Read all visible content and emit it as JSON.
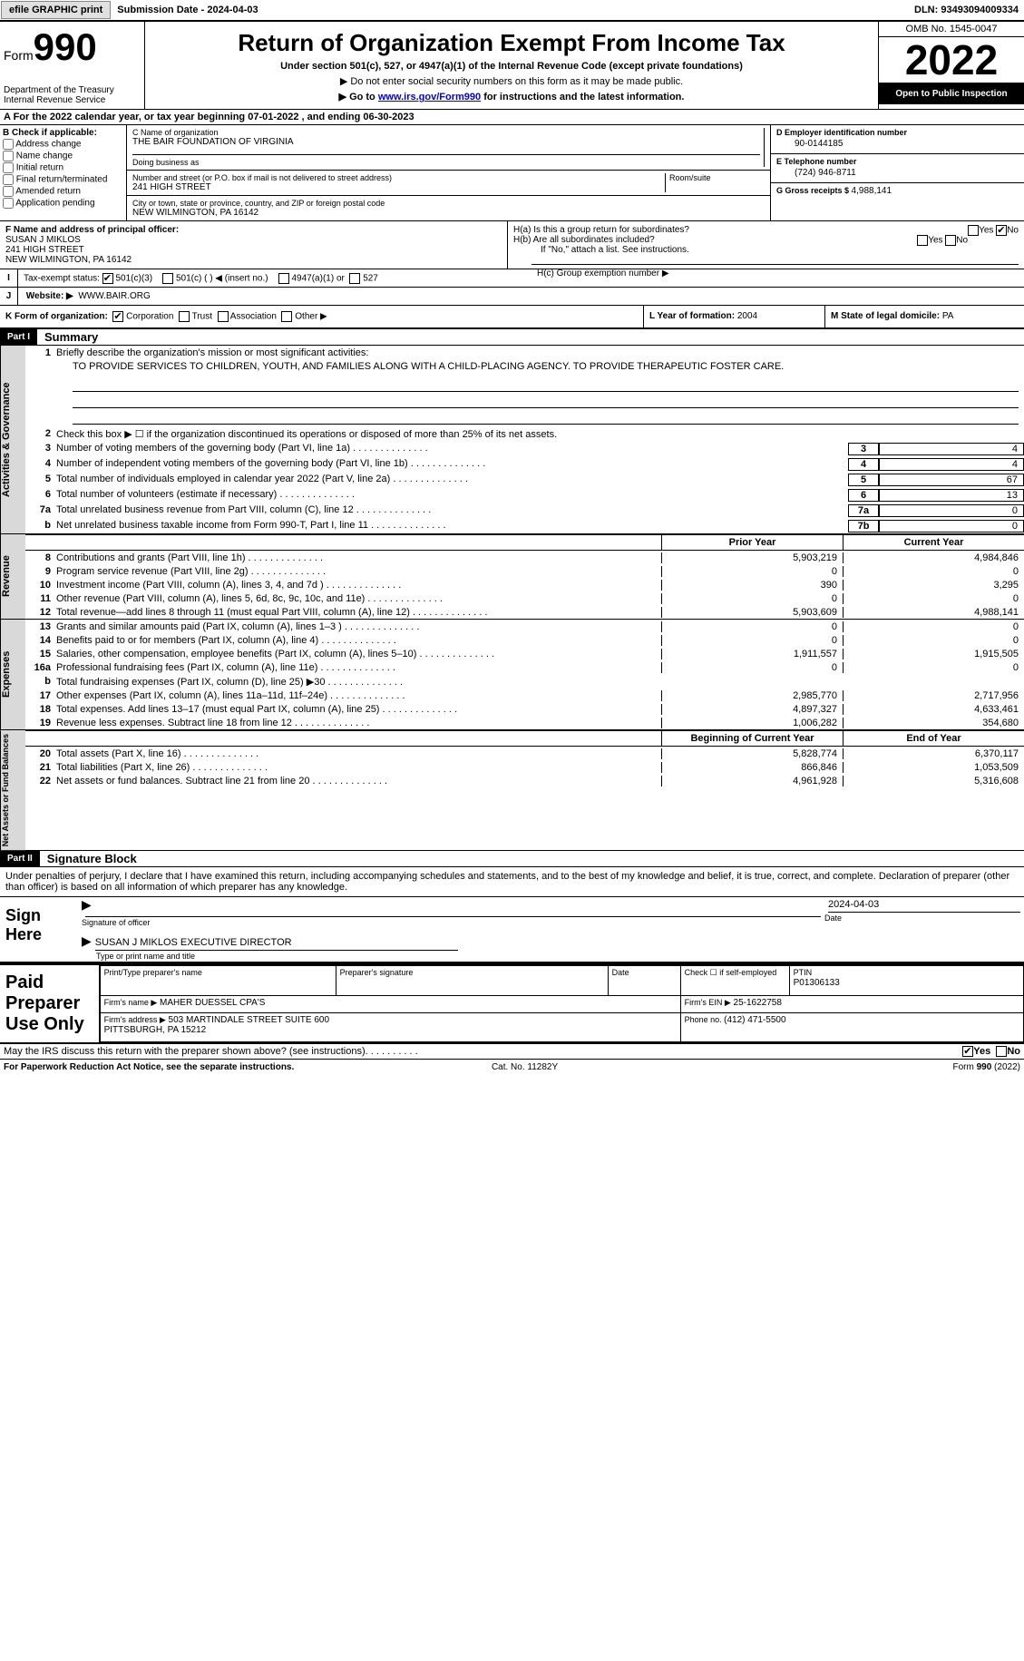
{
  "topbar": {
    "efile_btn": "efile GRAPHIC print",
    "sub_date_label": "Submission Date - ",
    "sub_date": "2024-04-03",
    "dln_label": "DLN: ",
    "dln": "93493094009334"
  },
  "hdr": {
    "form_label": "Form",
    "form_num": "990",
    "dept": "Department of the Treasury Internal Revenue Service",
    "title": "Return of Organization Exempt From Income Tax",
    "sub1": "Under section 501(c), 527, or 4947(a)(1) of the Internal Revenue Code (except private foundations)",
    "sub2": "▶ Do not enter social security numbers on this form as it may be made public.",
    "sub3a": "▶ Go to ",
    "sub3b": "www.irs.gov/Form990",
    "sub3c": " for instructions and the latest information.",
    "omb": "OMB No. 1545-0047",
    "year": "2022",
    "open": "Open to Public Inspection"
  },
  "calyear": {
    "a": "A For the 2022 calendar year, or tax year beginning ",
    "b": "07-01-2022",
    "c": " , and ending ",
    "d": "06-30-2023"
  },
  "colB": {
    "hdr": "B Check if applicable:",
    "opts": [
      "Address change",
      "Name change",
      "Initial return",
      "Final return/terminated",
      "Amended return",
      "Application pending"
    ]
  },
  "colC": {
    "name_lbl": "C Name of organization",
    "name": "THE BAIR FOUNDATION OF VIRGINIA",
    "dba_lbl": "Doing business as",
    "addr_lbl": "Number and street (or P.O. box if mail is not delivered to street address)",
    "room_lbl": "Room/suite",
    "addr": "241 HIGH STREET",
    "city_lbl": "City or town, state or province, country, and ZIP or foreign postal code",
    "city": "NEW WILMINGTON, PA  16142"
  },
  "colD": {
    "ein_lbl": "D Employer identification number",
    "ein": "90-0144185",
    "tel_lbl": "E Telephone number",
    "tel": "(724) 946-8711",
    "gross_lbl": "G Gross receipts $ ",
    "gross": "4,988,141"
  },
  "f": {
    "lbl": "F Name and address of principal officer:",
    "name": "SUSAN J MIKLOS",
    "addr1": "241 HIGH STREET",
    "addr2": "NEW WILMINGTON, PA  16142"
  },
  "h": {
    "ha": "H(a)  Is this a group return for subordinates?",
    "hb": "H(b)  Are all subordinates included?",
    "hbn": "If \"No,\" attach a list. See instructions.",
    "hc": "H(c)  Group exemption number ▶",
    "yes": "Yes",
    "no": "No"
  },
  "taxex": {
    "i": "I",
    "lbl": "Tax-exempt status:",
    "o1": "501(c)(3)",
    "o2": "501(c) (  ) ◀ (insert no.)",
    "o3": "4947(a)(1) or",
    "o4": "527"
  },
  "website": {
    "j": "J",
    "lbl": "Website: ▶",
    "val": "WWW.BAIR.ORG"
  },
  "korg": {
    "lbl": "K Form of organization:",
    "opts": [
      "Corporation",
      "Trust",
      "Association",
      "Other ▶"
    ],
    "l_lbl": "L Year of formation: ",
    "l_val": "2004",
    "m_lbl": "M State of legal domicile: ",
    "m_val": "PA"
  },
  "part1": {
    "hdr": "Part I",
    "title": "Summary"
  },
  "summary": {
    "l1": "Briefly describe the organization's mission or most significant activities:",
    "mission": "TO PROVIDE SERVICES TO CHILDREN, YOUTH, AND FAMILIES ALONG WITH A CHILD-PLACING AGENCY. TO PROVIDE THERAPEUTIC FOSTER CARE.",
    "l2": "Check this box ▶ ☐ if the organization discontinued its operations or disposed of more than 25% of its net assets.",
    "rows_gov": [
      {
        "n": "3",
        "t": "Number of voting members of the governing body (Part VI, line 1a)",
        "b": "3",
        "v": "4"
      },
      {
        "n": "4",
        "t": "Number of independent voting members of the governing body (Part VI, line 1b)",
        "b": "4",
        "v": "4"
      },
      {
        "n": "5",
        "t": "Total number of individuals employed in calendar year 2022 (Part V, line 2a)",
        "b": "5",
        "v": "67"
      },
      {
        "n": "6",
        "t": "Total number of volunteers (estimate if necessary)",
        "b": "6",
        "v": "13"
      },
      {
        "n": "7a",
        "t": "Total unrelated business revenue from Part VIII, column (C), line 12",
        "b": "7a",
        "v": "0"
      },
      {
        "n": "b",
        "t": "Net unrelated business taxable income from Form 990-T, Part I, line 11",
        "b": "7b",
        "v": "0"
      }
    ],
    "colhdr_prior": "Prior Year",
    "colhdr_curr": "Current Year",
    "rows_rev": [
      {
        "n": "8",
        "t": "Contributions and grants (Part VIII, line 1h)",
        "p": "5,903,219",
        "c": "4,984,846"
      },
      {
        "n": "9",
        "t": "Program service revenue (Part VIII, line 2g)",
        "p": "0",
        "c": "0"
      },
      {
        "n": "10",
        "t": "Investment income (Part VIII, column (A), lines 3, 4, and 7d )",
        "p": "390",
        "c": "3,295"
      },
      {
        "n": "11",
        "t": "Other revenue (Part VIII, column (A), lines 5, 6d, 8c, 9c, 10c, and 11e)",
        "p": "0",
        "c": "0"
      },
      {
        "n": "12",
        "t": "Total revenue—add lines 8 through 11 (must equal Part VIII, column (A), line 12)",
        "p": "5,903,609",
        "c": "4,988,141"
      }
    ],
    "rows_exp": [
      {
        "n": "13",
        "t": "Grants and similar amounts paid (Part IX, column (A), lines 1–3 )",
        "p": "0",
        "c": "0"
      },
      {
        "n": "14",
        "t": "Benefits paid to or for members (Part IX, column (A), line 4)",
        "p": "0",
        "c": "0"
      },
      {
        "n": "15",
        "t": "Salaries, other compensation, employee benefits (Part IX, column (A), lines 5–10)",
        "p": "1,911,557",
        "c": "1,915,505"
      },
      {
        "n": "16a",
        "t": "Professional fundraising fees (Part IX, column (A), line 11e)",
        "p": "0",
        "c": "0"
      },
      {
        "n": "b",
        "t": "Total fundraising expenses (Part IX, column (D), line 25) ▶30",
        "p": "",
        "c": "",
        "gray": true
      },
      {
        "n": "17",
        "t": "Other expenses (Part IX, column (A), lines 11a–11d, 11f–24e)",
        "p": "2,985,770",
        "c": "2,717,956"
      },
      {
        "n": "18",
        "t": "Total expenses. Add lines 13–17 (must equal Part IX, column (A), line 25)",
        "p": "4,897,327",
        "c": "4,633,461"
      },
      {
        "n": "19",
        "t": "Revenue less expenses. Subtract line 18 from line 12",
        "p": "1,006,282",
        "c": "354,680"
      }
    ],
    "colhdr_beg": "Beginning of Current Year",
    "colhdr_end": "End of Year",
    "rows_net": [
      {
        "n": "20",
        "t": "Total assets (Part X, line 16)",
        "p": "5,828,774",
        "c": "6,370,117"
      },
      {
        "n": "21",
        "t": "Total liabilities (Part X, line 26)",
        "p": "866,846",
        "c": "1,053,509"
      },
      {
        "n": "22",
        "t": "Net assets or fund balances. Subtract line 21 from line 20",
        "p": "4,961,928",
        "c": "5,316,608"
      }
    ],
    "vlabels": {
      "gov": "Activities & Governance",
      "rev": "Revenue",
      "exp": "Expenses",
      "net": "Net Assets or Fund Balances"
    }
  },
  "part2": {
    "hdr": "Part II",
    "title": "Signature Block"
  },
  "sig": {
    "decl": "Under penalties of perjury, I declare that I have examined this return, including accompanying schedules and statements, and to the best of my knowledge and belief, it is true, correct, and complete. Declaration of preparer (other than officer) is based on all information of which preparer has any knowledge.",
    "signhere": "Sign Here",
    "sig_officer": "Signature of officer",
    "date": "Date",
    "dateval": "2024-04-03",
    "name": "SUSAN J MIKLOS EXECUTIVE DIRECTOR",
    "name_lbl": "Type or print name and title"
  },
  "prep": {
    "lbl": "Paid Preparer Use Only",
    "pt_name_lbl": "Print/Type preparer's name",
    "psig_lbl": "Preparer's signature",
    "pdate_lbl": "Date",
    "chk_lbl": "Check ☐ if self-employed",
    "ptin_lbl": "PTIN",
    "ptin": "P01306133",
    "firm_lbl": "Firm's name  ▶",
    "firm": "MAHER DUESSEL CPA'S",
    "ein_lbl": "Firm's EIN ▶",
    "ein": "25-1622758",
    "addr_lbl": "Firm's address ▶",
    "addr": "503 MARTINDALE STREET SUITE 600\nPITTSBURGH, PA  15212",
    "phone_lbl": "Phone no. ",
    "phone": "(412) 471-5500"
  },
  "footq": "May the IRS discuss this return with the preparer shown above? (see instructions)",
  "foot_yes": "Yes",
  "foot_no": "No",
  "foot_l": "For Paperwork Reduction Act Notice, see the separate instructions.",
  "foot_c": "Cat. No. 11282Y",
  "foot_r": "Form 990 (2022)"
}
